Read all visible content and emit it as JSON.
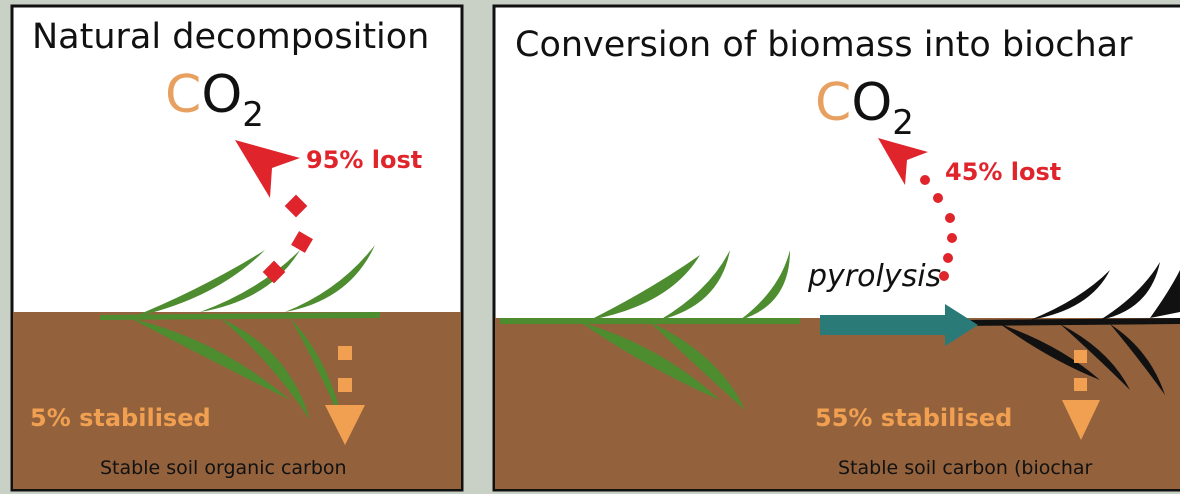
{
  "left_panel": {
    "title": "Natural decomposition",
    "co2": [
      "C",
      "O",
      "2"
    ],
    "loss_label": "95% lost",
    "stabilised_label": "5% stabilised",
    "soil_label": "Stable soil organic carbon"
  },
  "right_panel": {
    "title": "Conversion of biomass into biochar",
    "co2": [
      "C",
      "O",
      "2"
    ],
    "loss_label": "45% lost",
    "process_label": "pyrolysis",
    "stabilised_label": "55% stabilised",
    "soil_label": "Stable soil carbon (biochar"
  }
}
